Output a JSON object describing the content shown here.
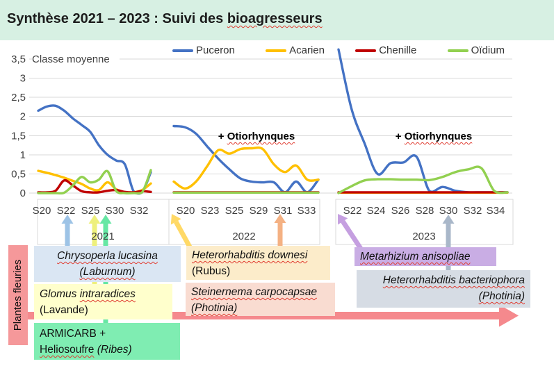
{
  "header": {
    "title_segments": [
      {
        "text": "Synthèse 2021 – 2023 : Suivi des ",
        "wavy": false
      },
      {
        "text": "bioagresseurs",
        "wavy": true
      }
    ]
  },
  "chart_data": {
    "type": "line",
    "title": "Synthèse 2021 – 2023 : Suivi des bioagresseurs",
    "y_axis_title": "Classe moyenne",
    "ylim": [
      0,
      3.5
    ],
    "y_tick_labels": [
      "3,5",
      "3",
      "2,5",
      "2",
      "1,5",
      "1",
      "0,5",
      "0"
    ],
    "grid": true,
    "legend_position": "top-center",
    "series_meta": [
      {
        "name": "Puceron",
        "color": "#4472c4"
      },
      {
        "name": "Acarien",
        "color": "#ffc000"
      },
      {
        "name": "Chenille",
        "color": "#c00000"
      },
      {
        "name": "Oïdium",
        "color": "#92d050"
      }
    ],
    "groups": [
      {
        "year": "2021",
        "week_labels": [
          "S20",
          "S22",
          "S25",
          "S30",
          "S32"
        ],
        "annotation_segments": null,
        "series": {
          "Puceron": [
            2.15,
            2.26,
            2.28,
            2.15,
            1.95,
            1.78,
            1.6,
            1.25,
            1.0,
            0.85,
            0.75,
            0.05,
            0.02,
            0.55
          ],
          "Acarien": [
            0.58,
            0.53,
            0.47,
            0.4,
            0.32,
            0.24,
            0.12,
            0.08,
            0.28,
            0.1,
            0.02,
            0.02,
            0.08,
            0.25
          ],
          "Chenille": [
            0.02,
            0.02,
            0.06,
            0.33,
            0.2,
            0.05,
            0.02,
            0.02,
            0.06,
            0.08,
            0.03,
            0.02,
            0.05,
            0.03
          ],
          "Oïdium": [
            0.0,
            0.0,
            0.0,
            0.01,
            0.2,
            0.42,
            0.28,
            0.35,
            0.57,
            0.05,
            0.0,
            0.0,
            0.02,
            0.6
          ]
        }
      },
      {
        "year": "2022",
        "week_labels": [
          "S20",
          "S23",
          "S25",
          "S29",
          "S31",
          "S33"
        ],
        "annotation_segments": [
          {
            "text": "+ ",
            "wavy": false
          },
          {
            "text": "Otiorhynques",
            "wavy": true
          }
        ],
        "series": {
          "Puceron": [
            1.75,
            1.72,
            1.55,
            1.22,
            0.9,
            0.62,
            0.38,
            0.3,
            0.28,
            0.28,
            0.02,
            0.3,
            0.02,
            0.35
          ],
          "Acarien": [
            0.3,
            0.12,
            0.3,
            0.7,
            1.12,
            1.03,
            1.15,
            1.17,
            1.15,
            0.75,
            0.55,
            0.72,
            0.35,
            0.35
          ],
          "Chenille": [
            0.02,
            0.02,
            0.02,
            0.02,
            0.02,
            0.02,
            0.02,
            0.02,
            0.02,
            0.02,
            0.02,
            0.02,
            0.02,
            0.02
          ],
          "Oïdium": [
            0.01,
            0.01,
            0.01,
            0.01,
            0.01,
            0.01,
            0.01,
            0.01,
            0.01,
            0.01,
            0.01,
            0.01,
            0.01,
            0.01
          ]
        }
      },
      {
        "year": "2023",
        "week_labels": [
          "S22",
          "S24",
          "S26",
          "S28",
          "S30",
          "S32",
          "S34"
        ],
        "annotation_segments": [
          {
            "text": "+ ",
            "wavy": false
          },
          {
            "text": "Otiorhynques",
            "wavy": true
          }
        ],
        "series": {
          "Puceron": [
            3.75,
            2.2,
            1.3,
            0.5,
            0.78,
            0.8,
            0.95,
            0.05,
            0.16,
            0.06,
            0.02,
            0.02,
            0.02,
            0.02
          ],
          "Acarien": [
            0.01,
            0.01,
            0.01,
            0.01,
            0.01,
            0.01,
            0.01,
            0.01,
            0.01,
            0.01,
            0.01,
            0.01,
            0.01,
            0.01
          ],
          "Chenille": [
            0.02,
            0.02,
            0.02,
            0.02,
            0.02,
            0.02,
            0.02,
            0.02,
            0.02,
            0.02,
            0.02,
            0.02,
            0.02,
            0.02
          ],
          "Oïdium": [
            0.0,
            0.18,
            0.33,
            0.36,
            0.36,
            0.35,
            0.35,
            0.34,
            0.42,
            0.55,
            0.62,
            0.65,
            0.05,
            0.02
          ]
        }
      }
    ]
  },
  "treatments": {
    "side_label": "Plantes fleuries",
    "boxes": [
      {
        "id": "chrysoperla",
        "lines": [
          [
            {
              "text": "Chrysoperla lucasina",
              "italic": true,
              "wavy": true
            }
          ],
          [
            {
              "text": "(Laburnum)",
              "italic": true,
              "wavy": true
            }
          ]
        ]
      },
      {
        "id": "glomus",
        "lines": [
          [
            {
              "text": "Glomus ",
              "italic": true
            },
            {
              "text": "intraradices",
              "italic": true,
              "wavy": true
            }
          ],
          [
            {
              "text": "(Lavande)"
            }
          ]
        ]
      },
      {
        "id": "armicarb",
        "lines": [
          [
            {
              "text": "ARMICARB +"
            }
          ],
          [
            {
              "text": "Heliosoufre",
              "wavy": true
            },
            {
              "text": " "
            },
            {
              "text": "(Ribes)",
              "italic": true
            }
          ]
        ]
      },
      {
        "id": "downesi",
        "lines": [
          [
            {
              "text": "Heterorhabditis downesi",
              "italic": true,
              "wavy": true
            }
          ],
          [
            {
              "text": "(Rubus)"
            }
          ]
        ]
      },
      {
        "id": "steinernema",
        "lines": [
          [
            {
              "text": "Steinernema carpocapsae",
              "italic": true,
              "wavy": true
            }
          ],
          [
            {
              "text": "(Photinia)",
              "italic": true,
              "wavy": true
            }
          ]
        ]
      },
      {
        "id": "metarhizium",
        "lines": [
          [
            {
              "text": "Metarhizium anisopliae",
              "italic": true,
              "wavy": true
            }
          ]
        ]
      },
      {
        "id": "bacteriophora",
        "lines": [
          [
            {
              "text": "Heterorhabditis bacteriophora",
              "italic": true,
              "wavy": true
            }
          ],
          [
            {
              "text": "(Photinia)",
              "italic": true,
              "wavy": true
            }
          ]
        ]
      }
    ]
  },
  "palette": {
    "header_bg": "#d7f0e3",
    "grid": "#d9d9d9",
    "tick_text": "#404040",
    "box_chrysoperla": "#dae6f3",
    "box_glomus": "#ffffcc",
    "box_armicarb": "#7fedb2",
    "box_downesi": "#fcecca",
    "box_steinernema": "#f9dcd1",
    "box_metarhizium": "#c9ade4",
    "box_bacteriophora": "#d6dce4",
    "side_label_bg": "#f5989a",
    "arrow_blue": "#9dc3e6",
    "arrow_yellow": "#eef07c",
    "arrow_green": "#66e7a4",
    "arrow_gold": "#ffd966",
    "arrow_peach": "#f4b183",
    "arrow_purple": "#c59fe0",
    "arrow_grayblue": "#a9b7c9",
    "arrow_pink": "#f5898d"
  }
}
